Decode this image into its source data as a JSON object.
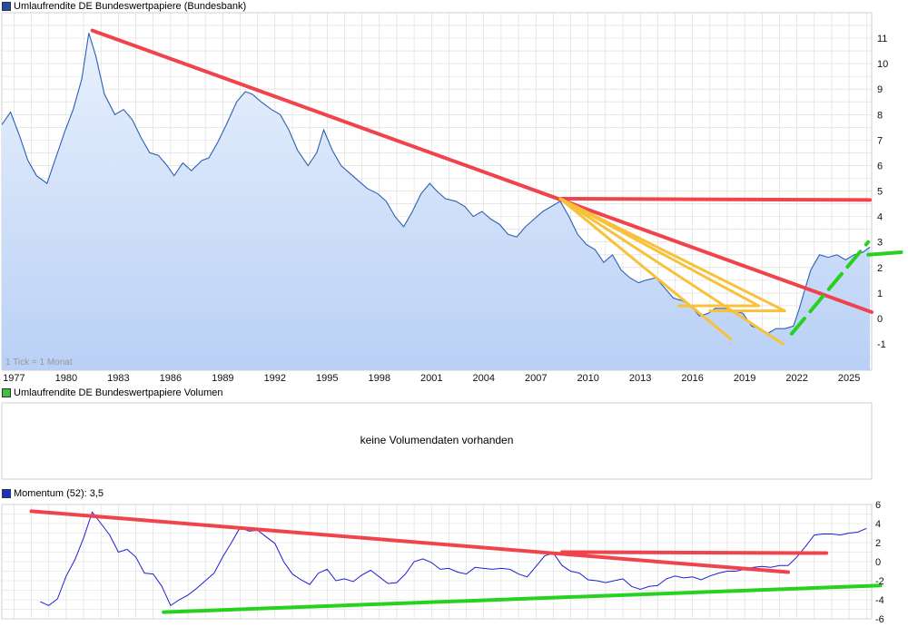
{
  "colors": {
    "price_line": "#2b5fb4",
    "price_fill_top": "#e9f1fd",
    "price_fill_bottom": "#b9d0f5",
    "momentum_line": "#1f1fd0",
    "red": "#f0444c",
    "yellow": "#f8c13a",
    "green": "#27d11f",
    "grid": "#d9d9d9",
    "swatch_price": "#1f4ea8",
    "swatch_volume": "#3ec13e",
    "swatch_momentum": "#1a2fc4"
  },
  "panels": {
    "price": {
      "title": "Umlaufrendite DE Bundeswertpapiere (Bundesbank)",
      "note": "1 Tick = 1 Monat"
    },
    "volume": {
      "title": "Umlaufrendite DE Bundeswertpapiere Volumen",
      "message": "keine Volumendaten vorhanden"
    },
    "momentum": {
      "title": "Momentum (52): 3,5"
    }
  },
  "chart_data": [
    {
      "type": "area",
      "title": "Umlaufrendite DE Bundeswertpapiere (Bundesbank)",
      "x_tick_labels": [
        "1977",
        "1980",
        "1983",
        "1986",
        "1989",
        "1992",
        "1995",
        "1998",
        "2001",
        "2004",
        "2007",
        "2010",
        "2013",
        "2016",
        "2019",
        "2022",
        "2025"
      ],
      "y_tick_labels": [
        "-1",
        "0",
        "1",
        "2",
        "3",
        "4",
        "5",
        "6",
        "7",
        "8",
        "9",
        "10",
        "11"
      ],
      "xlim": [
        1976.3,
        2026.3
      ],
      "ylim": [
        -2,
        12
      ],
      "grid": true,
      "series": [
        {
          "x": [
            1976.3,
            1976.8,
            1977.3,
            1977.8,
            1978.3,
            1978.9,
            1979.4,
            1979.9,
            1980.4,
            1980.9,
            1981.3,
            1981.7,
            1982.2,
            1982.8,
            1983.3,
            1983.8,
            1984.3,
            1984.8,
            1985.3,
            1985.8,
            1986.2,
            1986.7,
            1987.2,
            1987.8,
            1988.2,
            1988.7,
            1989.2,
            1989.8,
            1990.3,
            1990.7,
            1991.2,
            1991.8,
            1992.3,
            1992.8,
            1993.3,
            1993.9,
            1994.4,
            1994.8,
            1995.3,
            1995.8,
            1996.3,
            1996.8,
            1997.3,
            1997.9,
            1998.4,
            1998.9,
            1999.4,
            1999.9,
            2000.4,
            2000.9,
            2001.3,
            2001.8,
            2002.4,
            2002.9,
            2003.4,
            2003.9,
            2004.4,
            2004.9,
            2005.4,
            2005.9,
            2006.4,
            2006.9,
            2007.4,
            2007.9,
            2008.4,
            2008.9,
            2009.4,
            2009.9,
            2010.4,
            2010.9,
            2011.4,
            2011.9,
            2012.4,
            2012.9,
            2013.3,
            2013.9,
            2014.4,
            2014.9,
            2015.4,
            2015.9,
            2016.4,
            2016.9,
            2017.3,
            2017.9,
            2018.4,
            2018.9,
            2019.4,
            2019.9,
            2020.3,
            2020.8,
            2021.3,
            2021.8,
            2022.1,
            2022.4,
            2022.8,
            2023.3,
            2023.8,
            2024.3,
            2024.8,
            2025.3,
            2025.8,
            2026.2
          ],
          "y": [
            7.6,
            8.1,
            7.2,
            6.2,
            5.6,
            5.3,
            6.3,
            7.3,
            8.2,
            9.4,
            11.2,
            10.3,
            8.8,
            8.0,
            8.2,
            7.8,
            7.1,
            6.5,
            6.4,
            6.0,
            5.6,
            6.1,
            5.8,
            6.2,
            6.3,
            6.9,
            7.6,
            8.5,
            8.9,
            8.8,
            8.5,
            8.2,
            8.0,
            7.4,
            6.6,
            6.0,
            6.5,
            7.4,
            6.6,
            6.0,
            5.7,
            5.4,
            5.1,
            4.9,
            4.6,
            4.0,
            3.6,
            4.2,
            4.9,
            5.3,
            5.0,
            4.7,
            4.6,
            4.4,
            4.0,
            4.2,
            3.9,
            3.7,
            3.3,
            3.2,
            3.6,
            3.9,
            4.2,
            4.4,
            4.6,
            4.0,
            3.3,
            2.9,
            2.7,
            2.2,
            2.5,
            1.9,
            1.6,
            1.4,
            1.5,
            1.6,
            1.2,
            0.8,
            0.7,
            0.5,
            0.1,
            0.2,
            0.4,
            0.4,
            0.3,
            0.2,
            -0.3,
            -0.4,
            -0.6,
            -0.4,
            -0.4,
            -0.3,
            0.3,
            1.0,
            1.9,
            2.5,
            2.4,
            2.5,
            2.3,
            2.5,
            2.6,
            2.8
          ]
        }
      ],
      "trendlines": [
        {
          "color": "red",
          "x": [
            1981.5,
            2026.3
          ],
          "y": [
            11.3,
            0.25
          ]
        },
        {
          "color": "red",
          "x": [
            2008.4,
            2026.2
          ],
          "y": [
            4.7,
            4.65
          ]
        },
        {
          "color": "yellow",
          "x": [
            2008.4,
            2018.2
          ],
          "y": [
            4.7,
            -0.8
          ]
        },
        {
          "color": "yellow",
          "x": [
            2008.4,
            2021.2
          ],
          "y": [
            4.7,
            -1.0
          ]
        },
        {
          "color": "yellow",
          "x": [
            2008.4,
            2019.8
          ],
          "y": [
            4.7,
            0.5
          ]
        },
        {
          "color": "yellow",
          "x": [
            2008.4,
            2021.3
          ],
          "y": [
            4.7,
            0.3
          ]
        },
        {
          "color": "yellow",
          "x": [
            2015.2,
            2019.8
          ],
          "y": [
            0.5,
            0.5
          ]
        },
        {
          "color": "yellow",
          "x": [
            2017.0,
            2021.3
          ],
          "y": [
            0.3,
            0.3
          ]
        },
        {
          "color": "green",
          "x": [
            2021.7,
            2026.1
          ],
          "y": [
            -0.6,
            3.0
          ],
          "dashed": true
        },
        {
          "color": "green",
          "x": [
            2026.1,
            2028.0
          ],
          "y": [
            2.5,
            2.6
          ]
        }
      ]
    },
    {
      "type": "line",
      "title": "Momentum (52): 3,5",
      "y_tick_labels": [
        "-6",
        "-4",
        "-2",
        "0",
        "2",
        "4",
        "6"
      ],
      "xlim": [
        1976.3,
        2026.3
      ],
      "ylim": [
        -6,
        6
      ],
      "grid": true,
      "series": [
        {
          "x": [
            1978.5,
            1979.0,
            1979.5,
            1980.0,
            1980.5,
            1981.0,
            1981.5,
            1982.0,
            1982.5,
            1983.0,
            1983.5,
            1984.0,
            1984.5,
            1985.0,
            1985.5,
            1986.0,
            1986.5,
            1987.0,
            1987.5,
            1988.0,
            1988.5,
            1989.0,
            1989.5,
            1990.0,
            1990.5,
            1991.0,
            1991.5,
            1992.0,
            1992.5,
            1993.0,
            1993.5,
            1994.0,
            1994.5,
            1995.0,
            1995.5,
            1996.0,
            1996.5,
            1997.0,
            1997.5,
            1998.0,
            1998.5,
            1999.0,
            1999.5,
            2000.0,
            2000.5,
            2001.0,
            2001.5,
            2002.0,
            2002.5,
            2003.0,
            2003.5,
            2004.0,
            2004.5,
            2005.0,
            2005.5,
            2006.0,
            2006.5,
            2007.0,
            2007.5,
            2008.0,
            2008.5,
            2009.0,
            2009.5,
            2010.0,
            2010.5,
            2011.0,
            2011.5,
            2012.0,
            2012.5,
            2013.0,
            2013.5,
            2014.0,
            2014.5,
            2015.0,
            2015.5,
            2016.0,
            2016.5,
            2017.0,
            2017.5,
            2018.0,
            2018.5,
            2019.0,
            2019.5,
            2020.0,
            2020.5,
            2021.0,
            2021.5,
            2022.0,
            2022.5,
            2023.0,
            2023.5,
            2024.0,
            2024.5,
            2025.0,
            2025.5,
            2026.0
          ],
          "y": [
            -4.2,
            -4.6,
            -3.9,
            -1.5,
            0.2,
            2.5,
            5.2,
            4.0,
            2.8,
            1.0,
            1.3,
            0.5,
            -1.2,
            -1.3,
            -2.6,
            -4.6,
            -4.0,
            -3.5,
            -2.8,
            -2.0,
            -1.2,
            0.5,
            2.0,
            3.6,
            3.2,
            3.3,
            2.6,
            1.9,
            0.0,
            -1.3,
            -1.9,
            -2.4,
            -1.2,
            -0.8,
            -2.0,
            -1.8,
            -2.1,
            -1.4,
            -0.9,
            -1.6,
            -2.3,
            -2.2,
            -1.3,
            0.0,
            0.3,
            -0.1,
            -0.8,
            -0.7,
            -1.1,
            -1.3,
            -0.6,
            -0.7,
            -0.8,
            -0.7,
            -0.8,
            -1.3,
            -1.6,
            -0.5,
            0.6,
            0.9,
            -0.4,
            -1.0,
            -1.2,
            -1.9,
            -2.0,
            -2.2,
            -2.0,
            -1.8,
            -2.6,
            -2.9,
            -2.6,
            -2.5,
            -1.8,
            -1.5,
            -1.7,
            -1.6,
            -1.9,
            -1.5,
            -1.2,
            -1.0,
            -1.0,
            -0.8,
            -0.6,
            -0.5,
            -0.6,
            -0.4,
            -0.4,
            0.5,
            1.6,
            2.8,
            2.9,
            2.9,
            2.8,
            3.0,
            3.1,
            3.5
          ]
        }
      ],
      "trendlines": [
        {
          "color": "red",
          "x": [
            1978.0,
            2021.5
          ],
          "y": [
            5.3,
            -1.1
          ]
        },
        {
          "color": "red",
          "x": [
            2008.5,
            2023.7
          ],
          "y": [
            1.0,
            0.9
          ]
        },
        {
          "color": "green",
          "x": [
            1985.6,
            2026.8
          ],
          "y": [
            -5.3,
            -2.5
          ]
        }
      ]
    }
  ]
}
